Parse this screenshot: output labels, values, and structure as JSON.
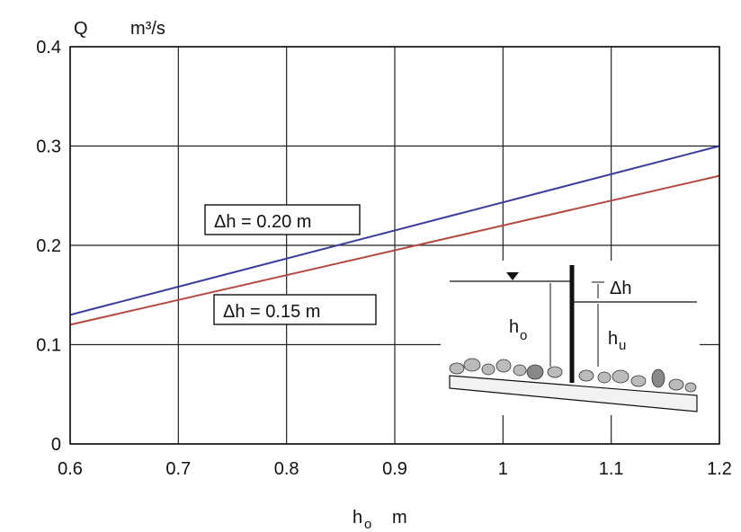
{
  "chart_data": {
    "type": "line",
    "y_label": {
      "symbol": "Q",
      "unit": "m³/s"
    },
    "x_label": {
      "symbol": "h",
      "subscript": "o",
      "unit": "m"
    },
    "xlim": [
      0.6,
      1.2
    ],
    "xticks": [
      0.6,
      0.7,
      0.8,
      0.9,
      1,
      1.1,
      1.2
    ],
    "ylim": [
      0,
      0.4
    ],
    "yticks": [
      0,
      0.1,
      0.2,
      0.3,
      0.4
    ],
    "grid": true,
    "series": [
      {
        "name": "Δh = 0.20 m",
        "color": "#3b3b9c",
        "x": [
          0.6,
          1.2
        ],
        "values": [
          0.13,
          0.3
        ]
      },
      {
        "name": "Δh = 0.15 m",
        "color": "#b24a42",
        "x": [
          0.6,
          1.2
        ],
        "values": [
          0.12,
          0.27
        ]
      }
    ],
    "inset": {
      "dh": "Δh",
      "ho": {
        "symbol": "h",
        "subscript": "o"
      },
      "hu": {
        "symbol": "h",
        "subscript": "u"
      }
    }
  }
}
